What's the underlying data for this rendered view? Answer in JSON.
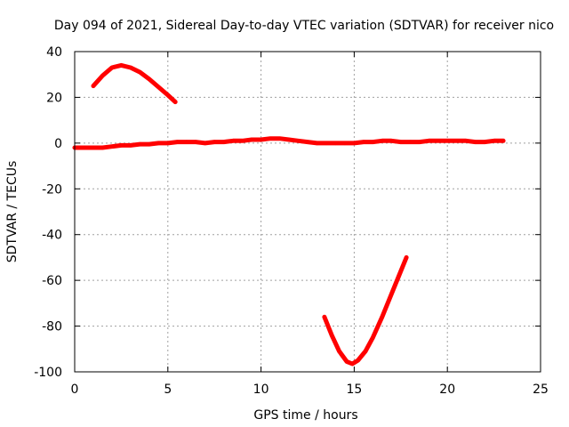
{
  "chart_data": {
    "type": "line",
    "title": "Day 094 of 2021, Sidereal Day-to-day VTEC variation (SDTVAR) for receiver nico",
    "xlabel": "GPS time / hours",
    "ylabel": "SDTVAR / TECUs",
    "xlim": [
      0,
      25
    ],
    "ylim": [
      -100,
      40
    ],
    "xticks": [
      0,
      5,
      10,
      15,
      20,
      25
    ],
    "yticks": [
      -100,
      -80,
      -60,
      -40,
      -20,
      0,
      20,
      40
    ],
    "grid": true,
    "color": "#ff0000",
    "series": [
      {
        "x": [
          0.0,
          0.5,
          1.0,
          1.5,
          2.0,
          2.5,
          3.0,
          3.5,
          4.0,
          4.5,
          5.0,
          5.5,
          6.0,
          6.5,
          7.0,
          7.5,
          8.0,
          8.5,
          9.0,
          9.5,
          10.0,
          10.5,
          11.0,
          11.5,
          12.0,
          12.5,
          13.0,
          13.5,
          14.0,
          14.5,
          15.0,
          15.5,
          16.0,
          16.5,
          17.0,
          17.5,
          18.0,
          18.5,
          19.0,
          19.5,
          20.0,
          20.5,
          21.0,
          21.5,
          22.0,
          22.5,
          23.0
        ],
        "y": [
          -2,
          -2,
          -2,
          -2,
          -1.5,
          -1,
          -1,
          -0.5,
          -0.5,
          0,
          0,
          0.5,
          0.5,
          0.5,
          0,
          0.5,
          0.5,
          1,
          1,
          1.5,
          1.5,
          2,
          2,
          1.5,
          1,
          0.5,
          0,
          0,
          0,
          0,
          0,
          0.5,
          0.5,
          1,
          1,
          0.5,
          0.5,
          0.5,
          1,
          1,
          1,
          1,
          1,
          0.5,
          0.5,
          1,
          1
        ]
      },
      {
        "x": [
          1.0,
          1.5,
          2.0,
          2.5,
          3.0,
          3.5,
          4.0,
          4.5,
          5.0,
          5.4
        ],
        "y": [
          25,
          29.5,
          33,
          34,
          33,
          31,
          28,
          24.5,
          21,
          18
        ]
      },
      {
        "x": [
          13.4,
          13.8,
          14.2,
          14.6,
          14.9,
          15.2,
          15.6,
          16.0,
          16.5,
          17.0,
          17.4,
          17.8
        ],
        "y": [
          -76,
          -84,
          -91,
          -95.5,
          -96.5,
          -95,
          -91,
          -85,
          -76,
          -66,
          -58,
          -50
        ]
      }
    ]
  }
}
